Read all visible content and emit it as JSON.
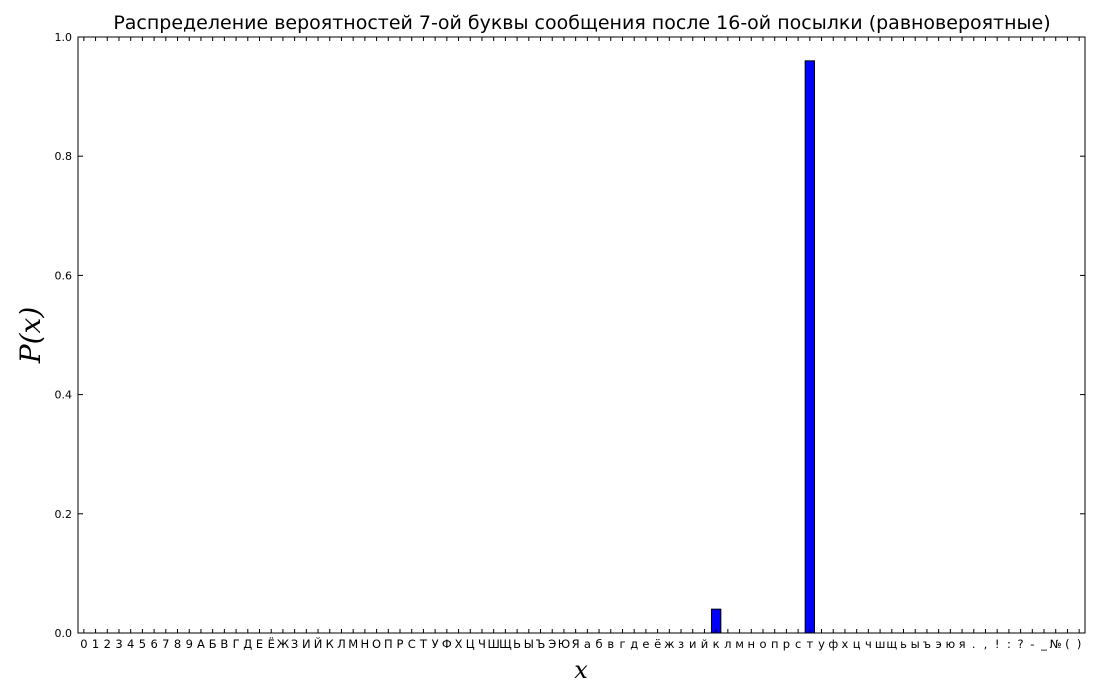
{
  "chart_data": {
    "type": "bar",
    "title": "Распределение вероятностей 7-ой буквы сообщения после 16-ой посылки (равновероятные)",
    "xlabel": "x",
    "ylabel": "P(x)",
    "ylim": [
      0,
      1.0
    ],
    "yticks": [
      "0.0",
      "0.2",
      "0.4",
      "0.6",
      "0.8",
      "1.0"
    ],
    "grid": false,
    "bar_color": "#0000ff",
    "categories": [
      "0",
      "1",
      "2",
      "3",
      "4",
      "5",
      "6",
      "7",
      "8",
      "9",
      "А",
      "Б",
      "В",
      "Г",
      "Д",
      "Е",
      "Ё",
      "Ж",
      "З",
      "И",
      "Й",
      "К",
      "Л",
      "М",
      "Н",
      "О",
      "П",
      "Р",
      "С",
      "Т",
      "У",
      "Ф",
      "Х",
      "Ц",
      "Ч",
      "Ш",
      "Щ",
      "Ь",
      "Ы",
      "Ъ",
      "Э",
      "Ю",
      "Я",
      "а",
      "б",
      "в",
      "г",
      "д",
      "е",
      "ё",
      "ж",
      "з",
      "и",
      "й",
      "к",
      "л",
      "м",
      "н",
      "о",
      "п",
      "р",
      "с",
      "т",
      "у",
      "ф",
      "х",
      "ц",
      "ч",
      "ш",
      "щ",
      "ь",
      "ы",
      "ъ",
      "э",
      "ю",
      "я",
      ".",
      ",",
      "!",
      ":",
      "?",
      "-",
      "_",
      "№",
      "(",
      ")"
    ],
    "values": [
      0,
      0,
      0,
      0,
      0,
      0,
      0,
      0,
      0,
      0,
      0,
      0,
      0,
      0,
      0,
      0,
      0,
      0,
      0,
      0,
      0,
      0,
      0,
      0,
      0,
      0,
      0,
      0,
      0,
      0,
      0,
      0,
      0,
      0,
      0,
      0,
      0,
      0,
      0,
      0,
      0,
      0,
      0,
      0,
      0,
      0,
      0,
      0,
      0,
      0,
      0,
      0,
      0,
      0,
      0.04,
      0,
      0,
      0,
      0,
      0,
      0,
      0,
      0.96,
      0,
      0,
      0,
      0,
      0,
      0,
      0,
      0,
      0,
      0,
      0,
      0,
      0,
      0,
      0,
      0,
      0,
      0,
      0,
      0,
      0,
      0,
      0
    ]
  }
}
